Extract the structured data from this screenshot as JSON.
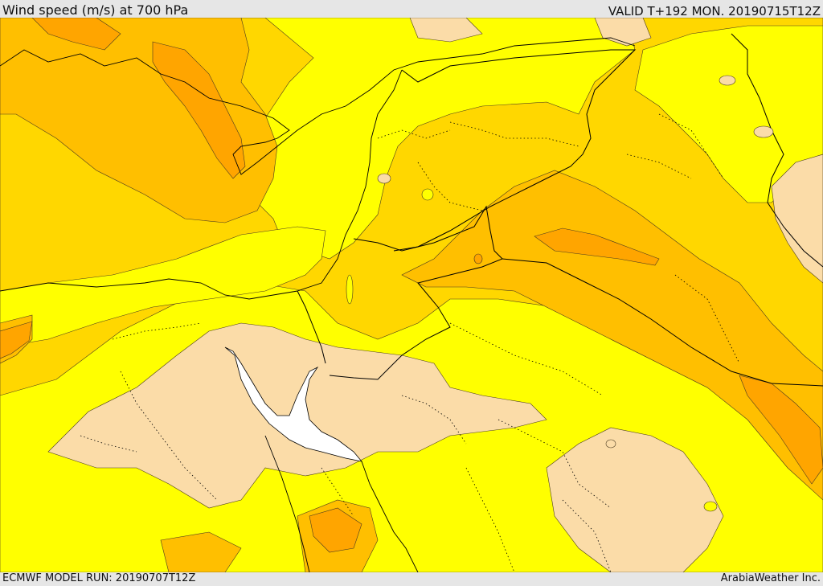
{
  "header": {
    "title": "Wind speed (m/s) at 700 hPa",
    "valid_time": "VALID T+192 MON. 20190715T12Z"
  },
  "footer": {
    "model_run": "ECMWF MODEL RUN: 20190707T12Z",
    "credit": "ArabiaWeather Inc."
  },
  "colors": {
    "lowest": "#fbdca8",
    "low": "#ffff00",
    "moderate": "#ffd700",
    "high": "#ffbf00",
    "highest": "#ffa500",
    "sea": "#ffffff"
  }
}
